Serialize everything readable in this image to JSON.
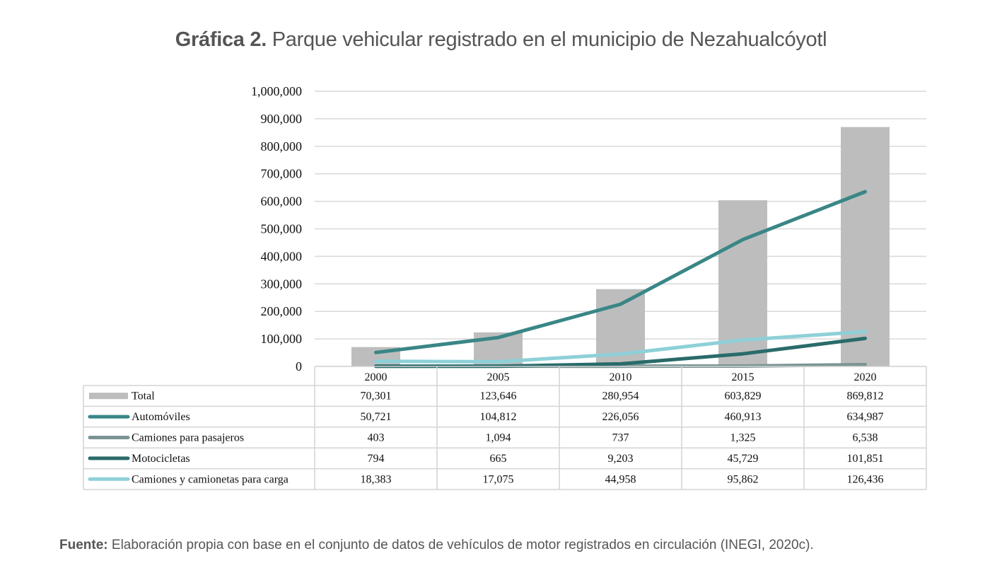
{
  "title": {
    "prefix": "Gráfica 2.",
    "text": "Parque vehicular registrado en el municipio de Nezahualcóyotl"
  },
  "source": {
    "prefix": "Fuente:",
    "text": "Elaboración propia con base en el conjunto de datos de vehículos de motor registrados en circulación (INEGI, 2020c)."
  },
  "chart_data": {
    "type": "bar",
    "title": "Parque vehicular registrado en el municipio de Nezahualcóyotl",
    "xlabel": "",
    "ylabel": "",
    "ylim": [
      0,
      1000000
    ],
    "yticks": [
      0,
      100000,
      200000,
      300000,
      400000,
      500000,
      600000,
      700000,
      800000,
      900000,
      1000000
    ],
    "ytick_labels": [
      "0",
      "100,000",
      "200,000",
      "300,000",
      "400,000",
      "500,000",
      "600,000",
      "700,000",
      "800,000",
      "900,000",
      "1,000,000"
    ],
    "categories": [
      "2000",
      "2005",
      "2010",
      "2015",
      "2020"
    ],
    "grid": true,
    "legend": "data-table-left",
    "series": [
      {
        "name": "Total",
        "type": "bar",
        "color": "#bdbdbd",
        "values": [
          70301,
          123646,
          280954,
          603829,
          869812
        ],
        "labels": [
          "70,301",
          "123,646",
          "280,954",
          "603,829",
          "869,812"
        ]
      },
      {
        "name": "Automóviles",
        "type": "line",
        "color": "#3a8686",
        "values": [
          50721,
          104812,
          226056,
          460913,
          634987
        ],
        "labels": [
          "50,721",
          "104,812",
          "226,056",
          "460,913",
          "634,987"
        ]
      },
      {
        "name": "Camiones para pasajeros",
        "type": "line",
        "color": "#7a9494",
        "values": [
          403,
          1094,
          737,
          1325,
          6538
        ],
        "labels": [
          "403",
          "1,094",
          "737",
          "1,325",
          "6,538"
        ]
      },
      {
        "name": "Motocicletas",
        "type": "line",
        "color": "#2a6b6b",
        "values": [
          794,
          665,
          9203,
          45729,
          101851
        ],
        "labels": [
          "794",
          "665",
          "9,203",
          "45,729",
          "101,851"
        ]
      },
      {
        "name": "Camiones y camionetas para carga",
        "type": "line",
        "color": "#8ed0d8",
        "values": [
          18383,
          17075,
          44958,
          95862,
          126436
        ],
        "labels": [
          "18,383",
          "17,075",
          "44,958",
          "95,862",
          "126,436"
        ]
      }
    ]
  }
}
